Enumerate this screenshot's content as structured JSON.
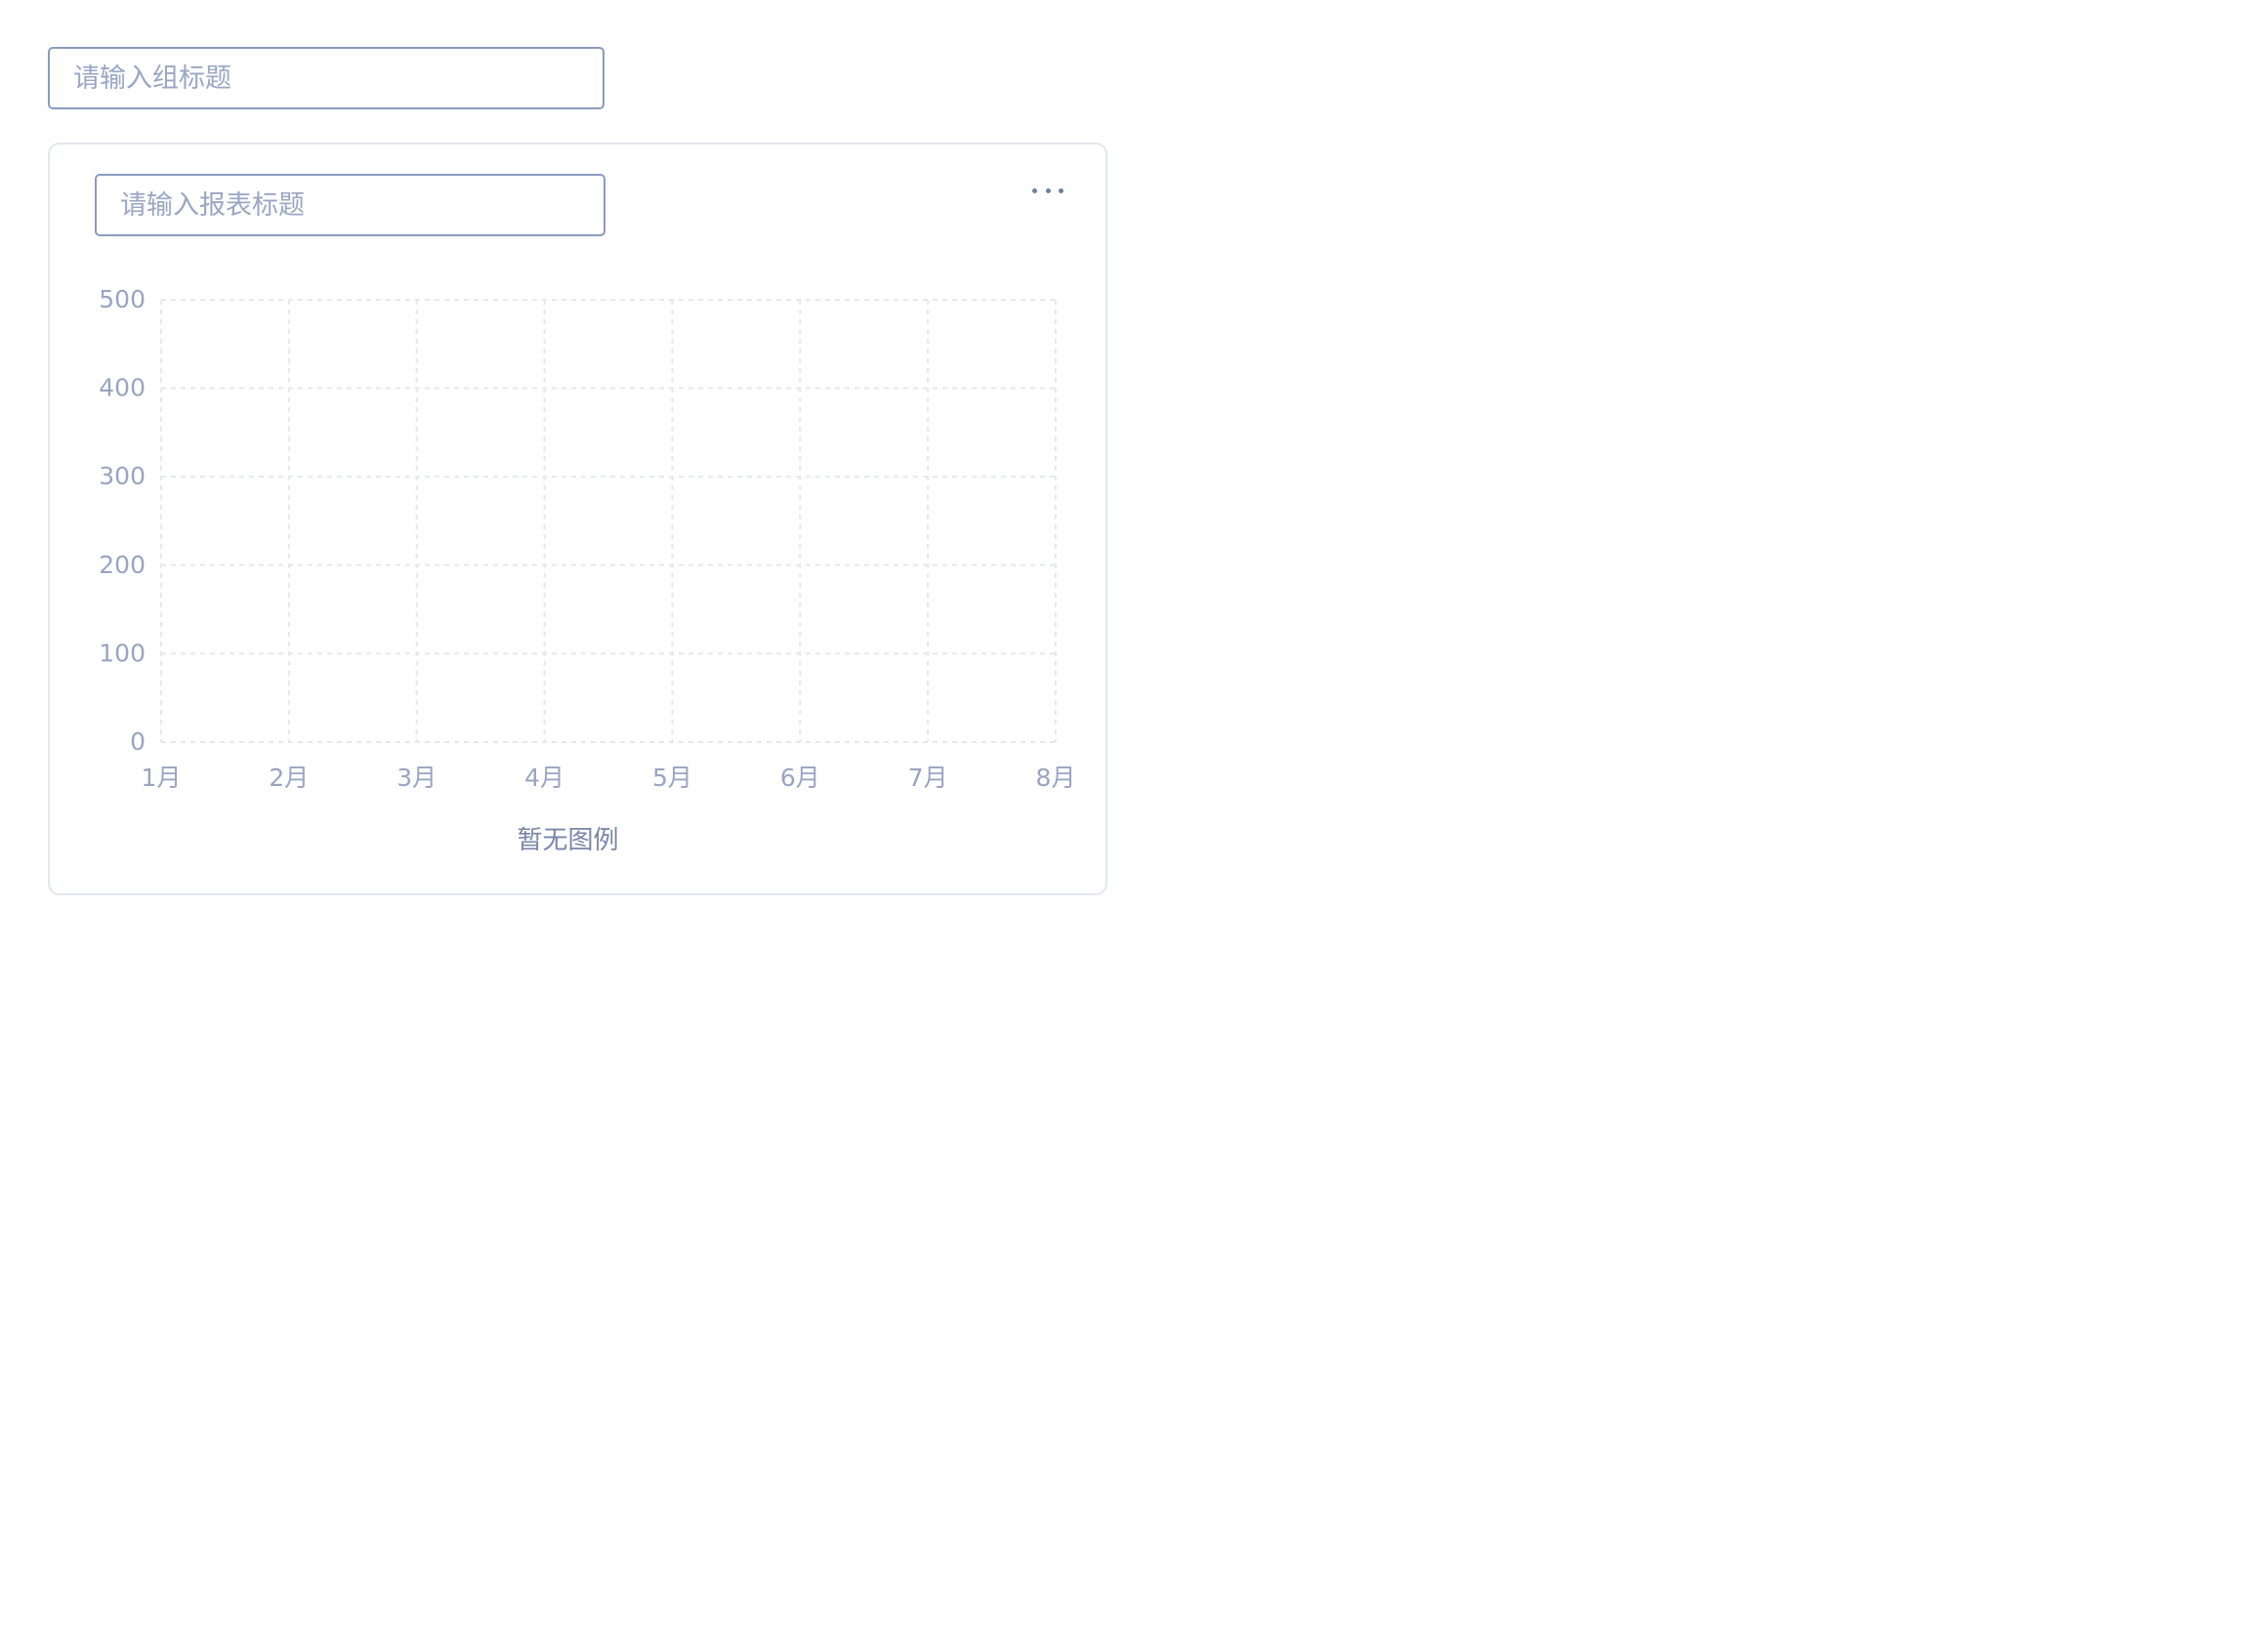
{
  "group": {
    "title_placeholder": "请输入组标题",
    "title_value": ""
  },
  "report": {
    "title_placeholder": "请输入报表标题",
    "title_value": "",
    "more_icon": "more-horizontal-icon",
    "legend_empty_text": "暂无图例"
  },
  "colors": {
    "input_border": "#8a9bbf",
    "placeholder": "#9aa6c4",
    "card_border": "#e3e7f0",
    "grid": "#e6e8ee",
    "tick_text": "#9aa4c2"
  },
  "chart_data": {
    "type": "line",
    "categories": [
      "1月",
      "2月",
      "3月",
      "4月",
      "5月",
      "6月",
      "7月",
      "8月"
    ],
    "series": [],
    "ylim": [
      0,
      500
    ],
    "yticks": [
      "0",
      "100",
      "200",
      "300",
      "400",
      "500"
    ],
    "grid": true,
    "title": "",
    "xlabel": "",
    "ylabel": ""
  }
}
